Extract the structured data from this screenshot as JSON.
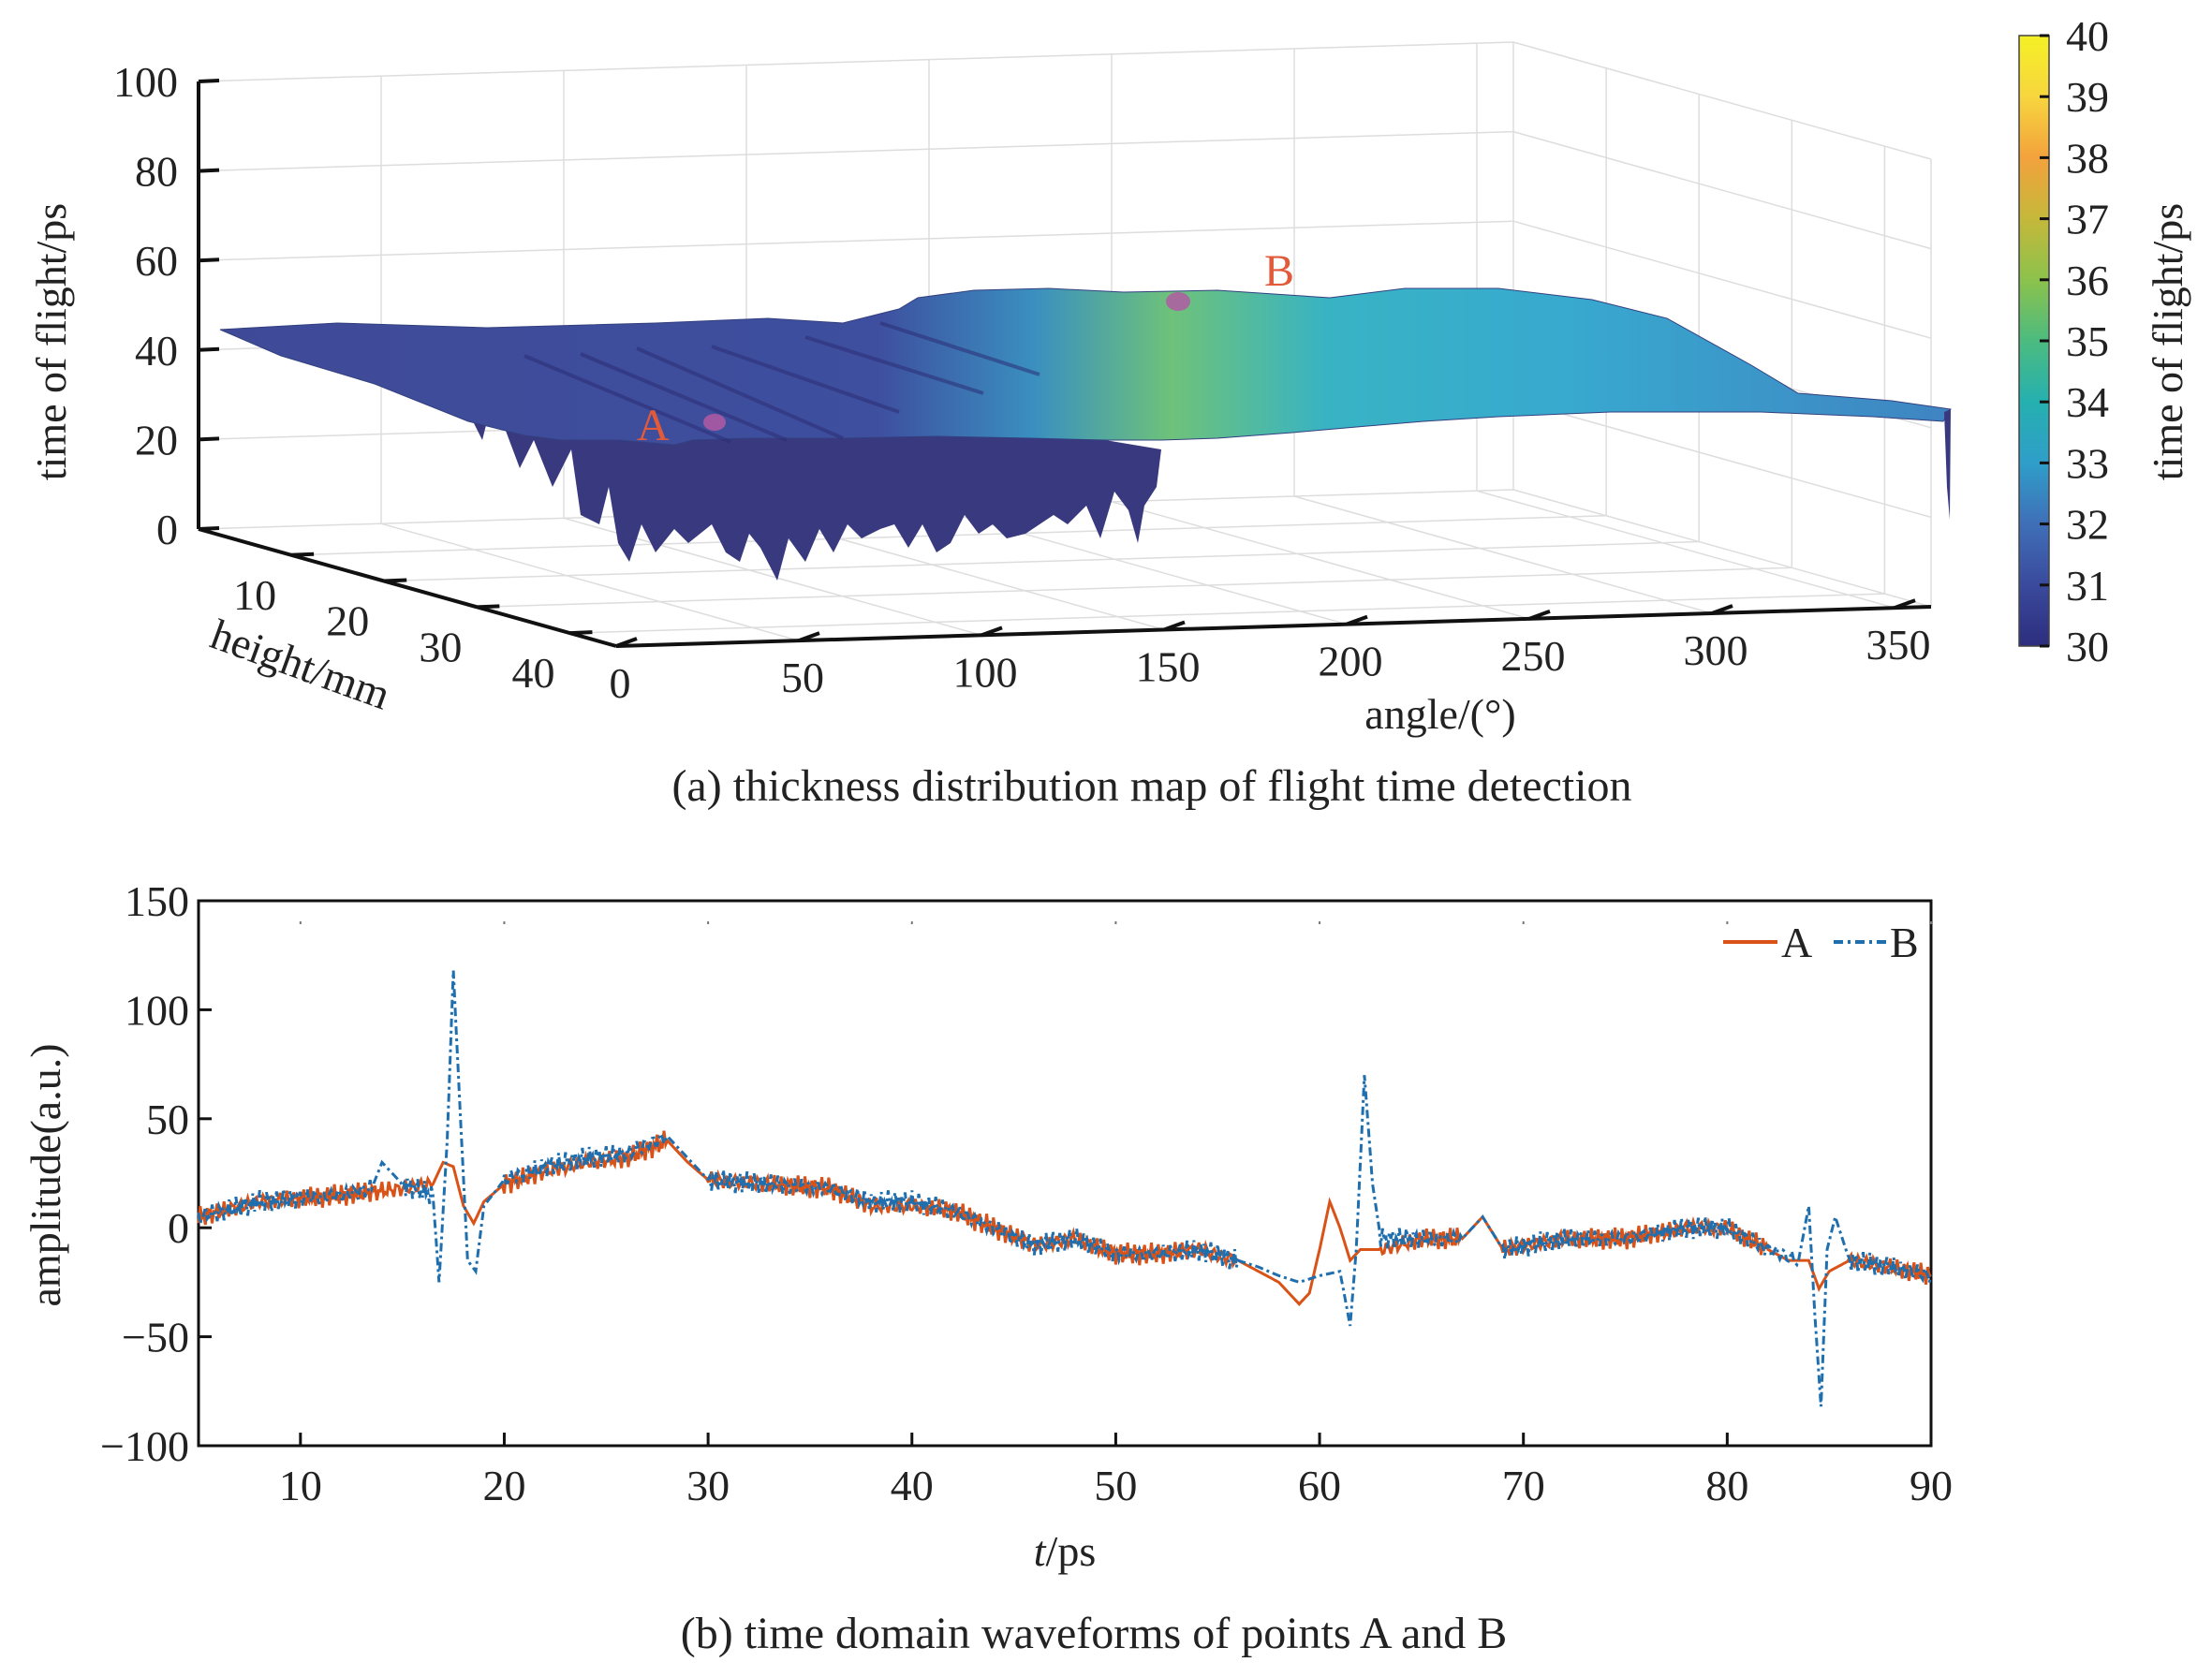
{
  "chart_data": [
    {
      "type": "surface3d",
      "caption": "(a) thickness distribution map of flight time detection",
      "zlabel": "time of flight/ps",
      "xlabel": "angle/(°)",
      "ylabel": "height/mm",
      "x_ticks": [
        "0",
        "50",
        "100",
        "150",
        "200",
        "250",
        "300",
        "350"
      ],
      "y_ticks": [
        "10",
        "20",
        "30",
        "40"
      ],
      "z_ticks": [
        "0",
        "20",
        "40",
        "60",
        "80",
        "100"
      ],
      "xlim": [
        0,
        360
      ],
      "ylim": [
        0,
        45
      ],
      "zlim": [
        0,
        100
      ],
      "colorbar": {
        "label": "time of flight/ps",
        "ticks": [
          "30",
          "31",
          "32",
          "33",
          "34",
          "35",
          "36",
          "37",
          "38",
          "39",
          "40"
        ],
        "range": [
          30,
          40
        ],
        "colors": [
          "#2d2d7e",
          "#3a4a9c",
          "#3f6fb8",
          "#2f9ec9",
          "#25b0b0",
          "#4cbb7f",
          "#8cc24c",
          "#c5b83a",
          "#f3a23c",
          "#f7d63e",
          "#f5f025"
        ]
      },
      "points": [
        {
          "label": "A",
          "angle": 60,
          "height": 20,
          "tof": 32
        },
        {
          "label": "B",
          "angle": 185,
          "height": 20,
          "tof": 36
        }
      ],
      "surface_profile": {
        "angle": [
          0,
          60,
          120,
          150,
          180,
          210,
          240,
          270,
          300,
          330,
          360
        ],
        "tof": [
          40,
          39,
          38,
          41,
          46,
          44,
          42,
          40,
          38,
          36,
          33
        ]
      },
      "grid": true
    },
    {
      "type": "line",
      "caption": "(b) time domain waveforms of points A and B",
      "xlabel_italic": "t",
      "xlabel_rest": "/ps",
      "ylabel": "amplitude(a.u.)",
      "xlim": [
        5,
        90
      ],
      "ylim": [
        -100,
        150
      ],
      "x_ticks": [
        "10",
        "20",
        "30",
        "40",
        "50",
        "60",
        "70",
        "80",
        "90"
      ],
      "y_ticks": [
        "150",
        "100",
        "50",
        "0",
        "−50",
        "−100"
      ],
      "legend": "top-right",
      "series": [
        {
          "name": "A",
          "color": "#d95319",
          "dash": "solid",
          "x": [
            5,
            8,
            12,
            15,
            16.5,
            17,
            17.5,
            18,
            18.5,
            19,
            20,
            22,
            24,
            26,
            28,
            29,
            30,
            33,
            36,
            38,
            40,
            42,
            44,
            46,
            48,
            50,
            52,
            54,
            56,
            57,
            58,
            59,
            59.5,
            60,
            60.5,
            61,
            61.5,
            62,
            63,
            65,
            67,
            68,
            69,
            72,
            75,
            78,
            80,
            82,
            83,
            84,
            84.5,
            85,
            86,
            88,
            90
          ],
          "values": [
            5,
            12,
            15,
            18,
            20,
            30,
            28,
            10,
            2,
            12,
            20,
            26,
            30,
            32,
            40,
            30,
            22,
            20,
            18,
            10,
            10,
            8,
            0,
            -8,
            -5,
            -12,
            -12,
            -10,
            -15,
            -20,
            -25,
            -35,
            -30,
            -10,
            12,
            0,
            -15,
            -10,
            -10,
            -5,
            -5,
            5,
            -10,
            -5,
            -5,
            0,
            0,
            -10,
            -15,
            -15,
            -28,
            -20,
            -15,
            -18,
            -22
          ]
        },
        {
          "name": "B",
          "color": "#1f6fae",
          "dash": "dashdot",
          "x": [
            5,
            8,
            12,
            13.5,
            14,
            15,
            16.5,
            16.8,
            17.2,
            17.5,
            17.8,
            18.2,
            18.6,
            19,
            20,
            22,
            24,
            26,
            28,
            29,
            30,
            33,
            36,
            38,
            40,
            42,
            44,
            46,
            48,
            50,
            52,
            54,
            56,
            57,
            58,
            59,
            60,
            61,
            61.5,
            61.8,
            62.2,
            62.6,
            63,
            65,
            67,
            68,
            69,
            72,
            75,
            78,
            80,
            82,
            83.5,
            84,
            84.3,
            84.6,
            84.9,
            85.3,
            86,
            88,
            90
          ],
          "values": [
            5,
            12,
            15,
            18,
            30,
            20,
            15,
            -25,
            40,
            118,
            60,
            -15,
            -20,
            10,
            22,
            28,
            32,
            34,
            42,
            32,
            22,
            20,
            18,
            12,
            12,
            8,
            0,
            -8,
            -5,
            -12,
            -12,
            -10,
            -15,
            -18,
            -22,
            -25,
            -22,
            -20,
            -45,
            -10,
            70,
            20,
            -5,
            -5,
            -5,
            5,
            -10,
            -5,
            -5,
            0,
            0,
            -10,
            -15,
            10,
            -40,
            -82,
            -10,
            5,
            -15,
            -18,
            -22
          ]
        }
      ],
      "grid": false
    }
  ]
}
